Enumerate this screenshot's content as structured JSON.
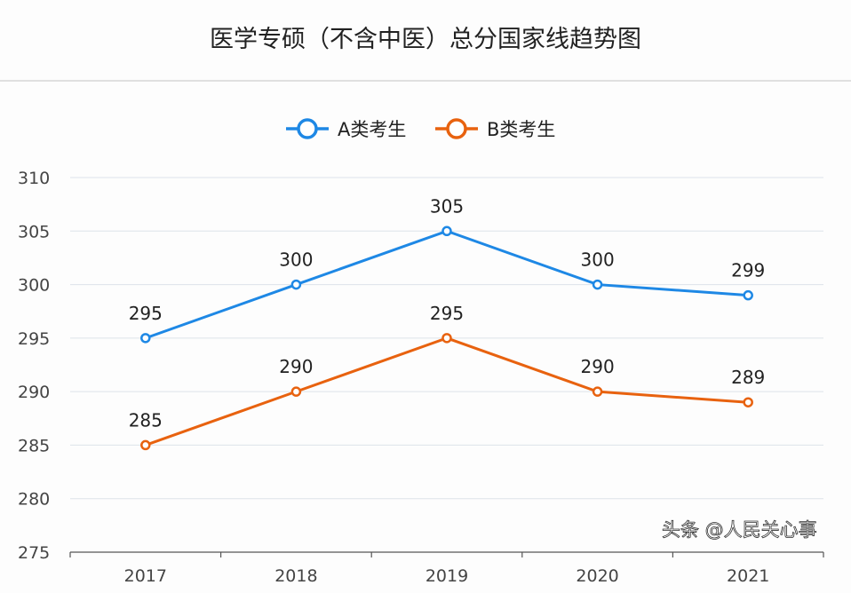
{
  "chart_data": {
    "type": "line",
    "title": "医学专硕（不含中医）总分国家线趋势图",
    "categories": [
      "2017",
      "2018",
      "2019",
      "2020",
      "2021"
    ],
    "series": [
      {
        "name": "A类考生",
        "values": [
          295,
          300,
          305,
          300,
          299
        ],
        "color": "#1e88e5"
      },
      {
        "name": "B类考生",
        "values": [
          285,
          290,
          295,
          290,
          289
        ],
        "color": "#e8620f"
      }
    ],
    "xlabel": "",
    "ylabel": "",
    "ylim": [
      275,
      310
    ],
    "yticks": [
      275,
      280,
      285,
      290,
      295,
      300,
      305,
      310
    ],
    "grid": true,
    "legend": "top-center",
    "data_labels": true
  },
  "watermark": "头条 @人民关心事"
}
